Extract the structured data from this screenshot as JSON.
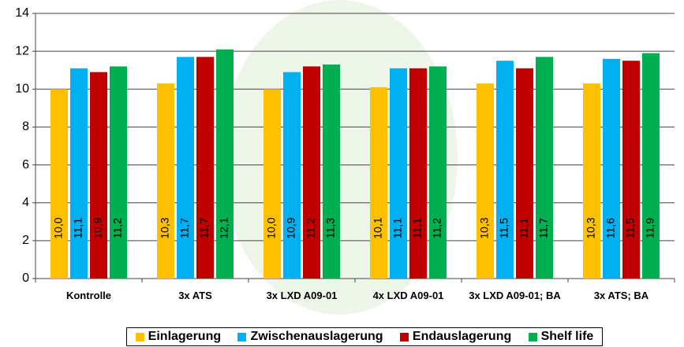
{
  "chart_data": {
    "type": "bar",
    "categories": [
      "Kontrolle",
      "3x ATS",
      "3x LXD A09-01",
      "4x LXD A09-01",
      "3x LXD A09-01; BA",
      "3x ATS; BA"
    ],
    "series": [
      {
        "name": "Einlagerung",
        "color": "#FFC000",
        "values": [
          10.0,
          10.3,
          10.0,
          10.1,
          10.3,
          10.3
        ],
        "value_labels": [
          "10,0",
          "10,3",
          "10,0",
          "10,1",
          "10,3",
          "10,3"
        ]
      },
      {
        "name": "Zwischenauslagerung",
        "color": "#00B0F0",
        "values": [
          11.1,
          11.7,
          10.9,
          11.1,
          11.5,
          11.6
        ],
        "value_labels": [
          "11,1",
          "11,7",
          "10,9",
          "11,1",
          "11,5",
          "11,6"
        ]
      },
      {
        "name": "Endauslagerung",
        "color": "#C00000",
        "values": [
          10.9,
          11.7,
          11.2,
          11.1,
          11.1,
          11.5
        ],
        "value_labels": [
          "10,9",
          "11,7",
          "11,2",
          "11,1",
          "11,1",
          "11,5"
        ]
      },
      {
        "name": "Shelf life",
        "color": "#00B050",
        "values": [
          11.2,
          12.1,
          11.3,
          11.2,
          11.7,
          11.9
        ],
        "value_labels": [
          "11,2",
          "12,1",
          "11,3",
          "11,2",
          "11,7",
          "11,9"
        ]
      }
    ],
    "ylim": [
      0,
      14
    ],
    "yticks": [
      0,
      2,
      4,
      6,
      8,
      10,
      12,
      14
    ],
    "grid": true,
    "legend": "bottom"
  }
}
